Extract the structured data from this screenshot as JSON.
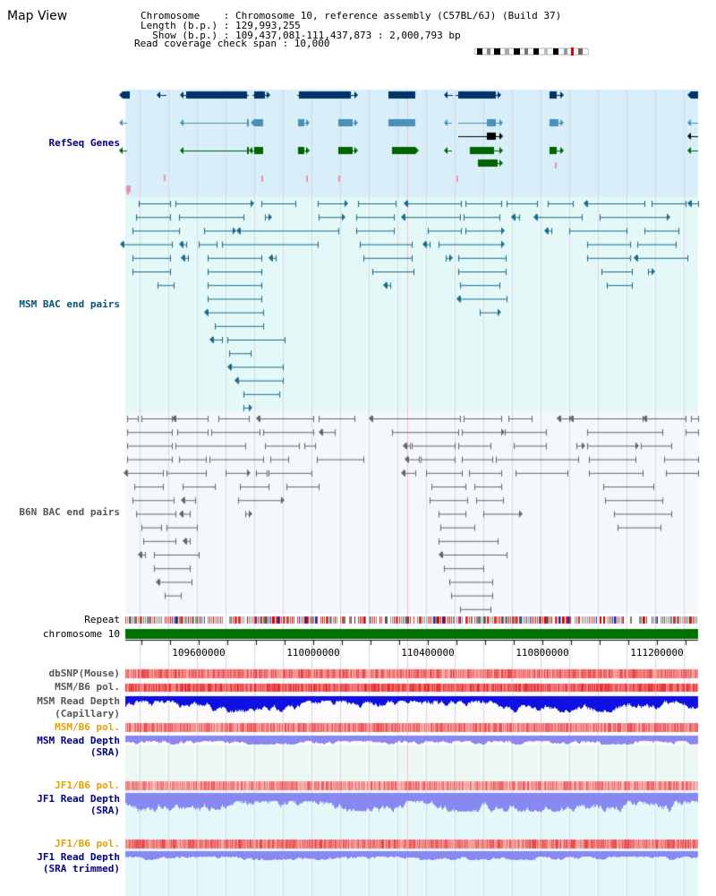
{
  "header": {
    "title": "Map View",
    "info_lines": [
      "Chromosome    : Chromosome 10, reference assembly (C57BL/6J) (Build 37)",
      "Length (b.p.) : 129,993,255",
      "  Show (b.p.) : 109,437,081-111,437,873 : 2,000,793 bp",
      "Read coverage check span : 10,000"
    ]
  },
  "track_labels": {
    "refseq": "RefSeq Genes",
    "msm_bac": "MSM BAC end pairs",
    "b6n_bac": "B6N BAC end pairs",
    "repeat": "Repeat",
    "chromosome": "chromosome 10",
    "dbsnp": "dbSNP(Mouse)",
    "msm_b6_pol_1": "MSM/B6 pol.",
    "msm_read_depth_cap_1": "MSM Read Depth",
    "msm_read_depth_cap_2": "(Capillary)",
    "msm_b6_pol_2": "MSM/B6 pol.",
    "msm_read_depth_sra_1": "MSM Read Depth",
    "msm_read_depth_sra_2": "(SRA)",
    "jf1_b6_pol_1": "JF1/B6 pol.",
    "jf1_read_depth_sra_1": "JF1 Read Depth",
    "jf1_read_depth_sra_2": "(SRA)",
    "jf1_b6_pol_2": "JF1/B6 pol.",
    "jf1_read_depth_trim_1": "JF1 Read Depth",
    "jf1_read_depth_trim_2": "(SRA trimmed)"
  },
  "axis": {
    "ticks": [
      "109600000",
      "110000000",
      "110400000",
      "110800000",
      "111200000"
    ],
    "tick_values": [
      109600000,
      110000000,
      110400000,
      110800000,
      111200000
    ]
  },
  "colors": {
    "refseq_bg": "#d8eef8",
    "msm_bg": "#e4f8f8",
    "b6n_bg": "#f4f8fa",
    "cov_bg": "#eef8f2",
    "jf_bg": "#e4f8fa",
    "gene_navy": "#003366",
    "gene_lightblue": "#4a90b8",
    "gene_green": "#006400",
    "gene_black": "#000000",
    "msm_pair": "#1a6a8a",
    "b6n_pair": "#666666",
    "chromosome_bar": "#007000",
    "depth_blue": "#1010e0",
    "depth_light": "#8888f0",
    "pol_red": "#ee3333"
  }
}
